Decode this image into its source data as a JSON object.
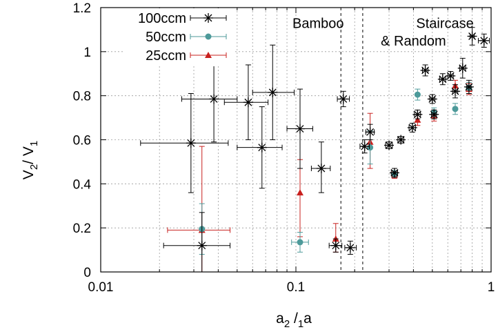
{
  "chart_data": {
    "type": "scatter",
    "x_scale": "log",
    "xlim": [
      0.01,
      1
    ],
    "ylim": [
      0,
      1.2
    ],
    "grid": true,
    "legend_position": "top-left",
    "x_ticks": [
      {
        "value": 0.01,
        "label": "0.01"
      },
      {
        "value": 0.1,
        "label": "0.1"
      },
      {
        "value": 1,
        "label": "1"
      }
    ],
    "y_ticks": [
      {
        "value": 0,
        "label": "0"
      },
      {
        "value": 0.2,
        "label": "0.2"
      },
      {
        "value": 0.4,
        "label": "0.4"
      },
      {
        "value": 0.6,
        "label": "0.6"
      },
      {
        "value": 0.8,
        "label": "0.8"
      },
      {
        "value": 1,
        "label": "1"
      },
      {
        "value": 1.2,
        "label": "1.2"
      }
    ],
    "xlabel": {
      "main": "a",
      "sub1": "2",
      "sep": " /",
      "sub2": "1",
      "tail": "a"
    },
    "ylabel": {
      "main": "V",
      "sub1": "2",
      "sep": "/ V",
      "sub2": "1"
    },
    "vlines": [
      0.17,
      0.22
    ],
    "regions": [
      {
        "label": "Bamboo",
        "x": 0.13,
        "y": 1.13
      },
      {
        "label": "Staircase",
        "x": 0.58,
        "y": 1.13
      },
      {
        "label": "& Random",
        "x": 0.4,
        "y": 1.05
      }
    ],
    "series": [
      {
        "name": "100ccm",
        "color": "#000000",
        "marker": "star",
        "points": [
          {
            "x": 0.029,
            "y": 0.585,
            "xerr": [
              0.016,
              0.045
            ],
            "yerr": [
              0.36,
              0.81
            ]
          },
          {
            "x": 0.033,
            "y": 0.12,
            "xerr": [
              0.021,
              0.046
            ],
            "yerr": [
              0.0,
              0.27
            ]
          },
          {
            "x": 0.038,
            "y": 0.785,
            "xerr": [
              0.026,
              0.05
            ],
            "yerr": [
              0.59,
              0.97
            ]
          },
          {
            "x": 0.057,
            "y": 0.77,
            "xerr": [
              0.043,
              0.072
            ],
            "yerr": [
              0.6,
              0.94
            ]
          },
          {
            "x": 0.067,
            "y": 0.565,
            "xerr": [
              0.05,
              0.085
            ],
            "yerr": [
              0.38,
              0.75
            ]
          },
          {
            "x": 0.076,
            "y": 0.815,
            "xerr": [
              0.06,
              0.098
            ],
            "yerr": [
              0.6,
              1.03
            ]
          },
          {
            "x": 0.105,
            "y": 0.65,
            "xerr": [
              0.09,
              0.122
            ],
            "yerr": [
              0.47,
              0.83
            ]
          },
          {
            "x": 0.135,
            "y": 0.47,
            "xerr": [
              0.12,
              0.15
            ],
            "yerr": [
              0.36,
              0.59
            ]
          },
          {
            "x": 0.16,
            "y": 0.12,
            "xerr": [
              0.148,
              0.172
            ],
            "yerr": [
              0.09,
              0.15
            ]
          },
          {
            "x": 0.175,
            "y": 0.785,
            "xerr": [
              0.163,
              0.188
            ],
            "yerr": [
              0.75,
              0.82
            ]
          },
          {
            "x": 0.19,
            "y": 0.11,
            "xerr": [
              0.178,
              0.204
            ],
            "yerr": [
              0.08,
              0.14
            ]
          },
          {
            "x": 0.225,
            "y": 0.57,
            "xerr": [
              0.213,
              0.238
            ],
            "yerr": [
              0.54,
              0.6
            ]
          },
          {
            "x": 0.24,
            "y": 0.635,
            "xerr": [
              0.228,
              0.252
            ],
            "yerr": [
              0.6,
              0.67
            ]
          },
          {
            "x": 0.3,
            "y": 0.575,
            "xerr": [
              0.288,
              0.312
            ],
            "yerr": [
              0.56,
              0.59
            ]
          },
          {
            "x": 0.32,
            "y": 0.45,
            "xerr": [
              0.308,
              0.332
            ],
            "yerr": [
              0.43,
              0.47
            ]
          },
          {
            "x": 0.345,
            "y": 0.6,
            "xerr": [
              0.333,
              0.357
            ],
            "yerr": [
              0.585,
              0.615
            ]
          },
          {
            "x": 0.395,
            "y": 0.655,
            "xerr": [
              0.38,
              0.41
            ],
            "yerr": [
              0.635,
              0.675
            ]
          },
          {
            "x": 0.42,
            "y": 0.715,
            "xerr": [
              0.405,
              0.435
            ],
            "yerr": [
              0.695,
              0.735
            ]
          },
          {
            "x": 0.46,
            "y": 0.915,
            "xerr": [
              0.445,
              0.475
            ],
            "yerr": [
              0.89,
              0.94
            ]
          },
          {
            "x": 0.5,
            "y": 0.785,
            "xerr": [
              0.485,
              0.515
            ],
            "yerr": [
              0.765,
              0.805
            ]
          },
          {
            "x": 0.51,
            "y": 0.715,
            "xerr": [
              0.495,
              0.525
            ],
            "yerr": [
              0.695,
              0.735
            ]
          },
          {
            "x": 0.565,
            "y": 0.875,
            "xerr": [
              0.545,
              0.585
            ],
            "yerr": [
              0.85,
              0.9
            ]
          },
          {
            "x": 0.62,
            "y": 0.89,
            "xerr": [
              0.6,
              0.64
            ],
            "yerr": [
              0.87,
              0.91
            ]
          },
          {
            "x": 0.655,
            "y": 0.82,
            "xerr": [
              0.635,
              0.675
            ],
            "yerr": [
              0.79,
              0.85
            ]
          },
          {
            "x": 0.715,
            "y": 0.925,
            "xerr": [
              0.69,
              0.74
            ],
            "yerr": [
              0.88,
              0.97
            ]
          },
          {
            "x": 0.77,
            "y": 0.84,
            "xerr": [
              0.75,
              0.79
            ],
            "yerr": [
              0.81,
              0.87
            ]
          },
          {
            "x": 0.8,
            "y": 1.07,
            "xerr": [
              0.78,
              0.82
            ],
            "yerr": [
              1.03,
              1.11
            ]
          },
          {
            "x": 0.92,
            "y": 1.05,
            "xerr": [
              0.86,
              0.98
            ],
            "yerr": [
              1.02,
              1.08
            ]
          }
        ]
      },
      {
        "name": "50ccm",
        "color": "#4d9a9a",
        "marker": "circle",
        "points": [
          {
            "x": 0.033,
            "y": 0.195,
            "xerr": [
              0.033,
              0.033
            ],
            "yerr": [
              0.08,
              0.31
            ]
          },
          {
            "x": 0.105,
            "y": 0.135,
            "xerr": [
              0.095,
              0.116
            ],
            "yerr": [
              0.09,
              0.18
            ]
          },
          {
            "x": 0.24,
            "y": 0.565,
            "xerr": [
              0.24,
              0.24
            ],
            "yerr": [
              0.49,
              0.64
            ]
          },
          {
            "x": 0.32,
            "y": 0.445,
            "xerr": [
              0.32,
              0.32
            ],
            "yerr": [
              0.43,
              0.46
            ]
          },
          {
            "x": 0.42,
            "y": 0.805,
            "xerr": [
              0.42,
              0.42
            ],
            "yerr": [
              0.78,
              0.83
            ]
          },
          {
            "x": 0.51,
            "y": 0.725,
            "xerr": [
              0.51,
              0.51
            ],
            "yerr": [
              0.705,
              0.745
            ]
          },
          {
            "x": 0.655,
            "y": 0.74,
            "xerr": [
              0.655,
              0.655
            ],
            "yerr": [
              0.715,
              0.765
            ]
          },
          {
            "x": 0.77,
            "y": 0.835,
            "xerr": [
              0.77,
              0.77
            ],
            "yerr": [
              0.81,
              0.86
            ]
          }
        ]
      },
      {
        "name": "25ccm",
        "color": "#c8201e",
        "marker": "triangle",
        "points": [
          {
            "x": 0.033,
            "y": 0.19,
            "xerr": [
              0.022,
              0.046
            ],
            "yerr": [
              0.0,
              0.57
            ]
          },
          {
            "x": 0.105,
            "y": 0.36,
            "xerr": [
              0.105,
              0.105
            ],
            "yerr": [
              0.16,
              0.51
            ]
          },
          {
            "x": 0.16,
            "y": 0.15,
            "xerr": [
              0.16,
              0.16
            ],
            "yerr": [
              0.09,
              0.22
            ]
          },
          {
            "x": 0.24,
            "y": 0.59,
            "xerr": [
              0.24,
              0.24
            ],
            "yerr": [
              0.47,
              0.72
            ]
          },
          {
            "x": 0.32,
            "y": 0.44,
            "xerr": [
              0.32,
              0.32
            ],
            "yerr": [
              0.425,
              0.455
            ]
          },
          {
            "x": 0.42,
            "y": 0.69,
            "xerr": [
              0.42,
              0.42
            ],
            "yerr": [
              0.665,
              0.715
            ]
          },
          {
            "x": 0.51,
            "y": 0.71,
            "xerr": [
              0.51,
              0.51
            ],
            "yerr": [
              0.685,
              0.735
            ]
          },
          {
            "x": 0.655,
            "y": 0.845,
            "xerr": [
              0.655,
              0.655
            ],
            "yerr": [
              0.82,
              0.87
            ]
          },
          {
            "x": 0.77,
            "y": 0.83,
            "xerr": [
              0.77,
              0.77
            ],
            "yerr": [
              0.805,
              0.855
            ]
          }
        ]
      }
    ]
  }
}
